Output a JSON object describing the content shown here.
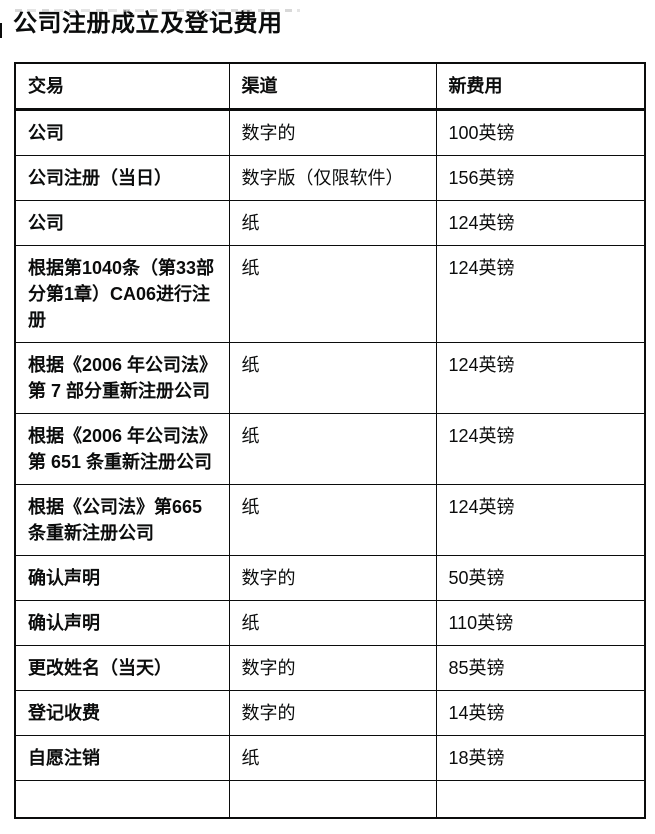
{
  "page": {
    "title": "公司注册成立及登记费用"
  },
  "colors": {
    "text": "#0b0c0c",
    "border": "#0b0c0c",
    "background": "#ffffff"
  },
  "table": {
    "headers": [
      "交易",
      "渠道",
      "新费用"
    ],
    "rows": [
      {
        "transaction": "公司",
        "channel": "数字的",
        "fee": "100英镑"
      },
      {
        "transaction": "公司注册（当日）",
        "channel": "数字版（仅限软件）",
        "fee": "156英镑"
      },
      {
        "transaction": "公司",
        "channel": "纸",
        "fee": "124英镑"
      },
      {
        "transaction": "根据第1040条（第33部分第1章）CA06进行注册",
        "channel": "纸",
        "fee": "124英镑"
      },
      {
        "transaction": "根据《2006 年公司法》第 7 部分重新注册公司",
        "channel": "纸",
        "fee": "124英镑"
      },
      {
        "transaction": "根据《2006 年公司法》第 651 条重新注册公司",
        "channel": "纸",
        "fee": "124英镑"
      },
      {
        "transaction": "根据《公司法》第665条重新注册公司",
        "channel": "纸",
        "fee": "124英镑"
      },
      {
        "transaction": "确认声明",
        "channel": "数字的",
        "fee": "50英镑"
      },
      {
        "transaction": "确认声明",
        "channel": "纸",
        "fee": "110英镑"
      },
      {
        "transaction": "更改姓名（当天）",
        "channel": "数字的",
        "fee": "85英镑"
      },
      {
        "transaction": "登记收费",
        "channel": "数字的",
        "fee": "14英镑"
      },
      {
        "transaction": "自愿注销",
        "channel": "纸",
        "fee": "18英镑"
      }
    ]
  }
}
